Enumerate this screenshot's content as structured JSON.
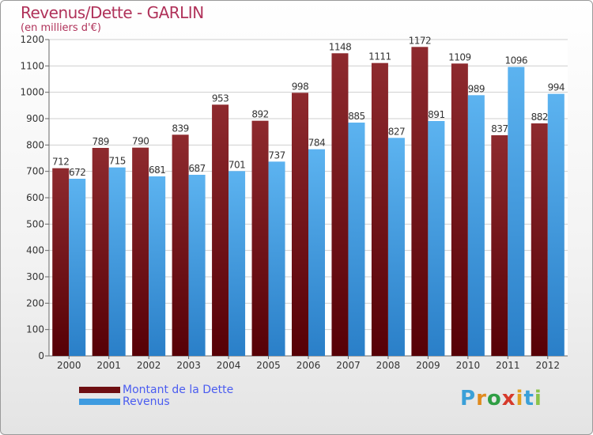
{
  "header": {
    "title": "Revenus/Dette - GARLIN",
    "subtitle": "(en milliers d'€)"
  },
  "legend": {
    "items": [
      {
        "label": "Montant de la Dette",
        "color": "#6e0f12"
      },
      {
        "label": "Revenus",
        "color": "#3e9be0"
      }
    ]
  },
  "logo": {
    "letters": [
      "P",
      "r",
      "o",
      "x",
      "i",
      "t",
      "i"
    ],
    "colors": [
      "#3aa0d8",
      "#e08a1e",
      "#2f9e44",
      "#d63a2b",
      "#e0a020",
      "#3aa0d8",
      "#8bc34a"
    ]
  },
  "chart_data": {
    "type": "bar",
    "categories": [
      "2000",
      "2001",
      "2002",
      "2003",
      "2004",
      "2005",
      "2006",
      "2007",
      "2008",
      "2009",
      "2010",
      "2011",
      "2012"
    ],
    "series": [
      {
        "name": "Montant de la Dette",
        "values": [
          712,
          789,
          790,
          839,
          953,
          892,
          998,
          1148,
          1111,
          1172,
          1109,
          837,
          882
        ]
      },
      {
        "name": "Revenus",
        "values": [
          672,
          715,
          681,
          687,
          701,
          737,
          784,
          885,
          827,
          891,
          989,
          1096,
          994
        ]
      }
    ],
    "ylim": [
      0,
      1200
    ],
    "yticks": [
      0,
      100,
      200,
      300,
      400,
      500,
      600,
      700,
      800,
      900,
      1000,
      1100,
      1200
    ],
    "grid": true,
    "legend_position": "bottom-left"
  }
}
